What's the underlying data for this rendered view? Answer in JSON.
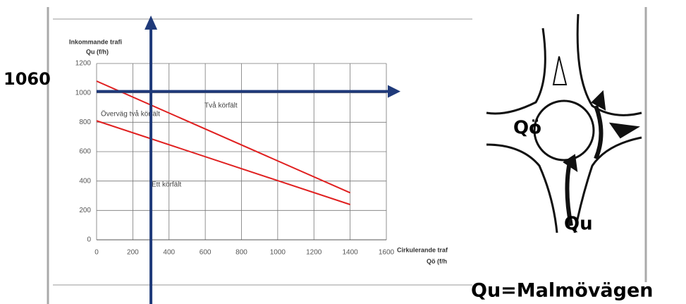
{
  "chart_data": {
    "type": "line",
    "y_label": [
      "Inkommande trafi",
      "Qu (f/h)"
    ],
    "x_label": [
      "Cirkulerande traf",
      "Qö (f/h"
    ],
    "x": [
      0,
      1400
    ],
    "series": [
      {
        "name": "Två körfält",
        "color": "#e02020",
        "values": [
          1080,
          320
        ]
      },
      {
        "name": "Ett körfält",
        "color": "#e02020",
        "values": [
          810,
          240
        ]
      }
    ],
    "annotations": [
      "Överväg två körfält",
      "1060",
      "Qu=Malmövägen"
    ],
    "crosshair": {
      "x": 300,
      "y": 1010,
      "color": "#1f3a7a"
    },
    "xlim": [
      0,
      1600
    ],
    "xticks": [
      0,
      200,
      400,
      600,
      800,
      1000,
      1200,
      1400,
      1600
    ],
    "ylim": [
      0,
      1200
    ],
    "yticks": [
      0,
      200,
      400,
      600,
      800,
      1000,
      1200
    ],
    "grid": true
  },
  "diagram": {
    "labels": [
      "Qö",
      "Qu"
    ]
  }
}
